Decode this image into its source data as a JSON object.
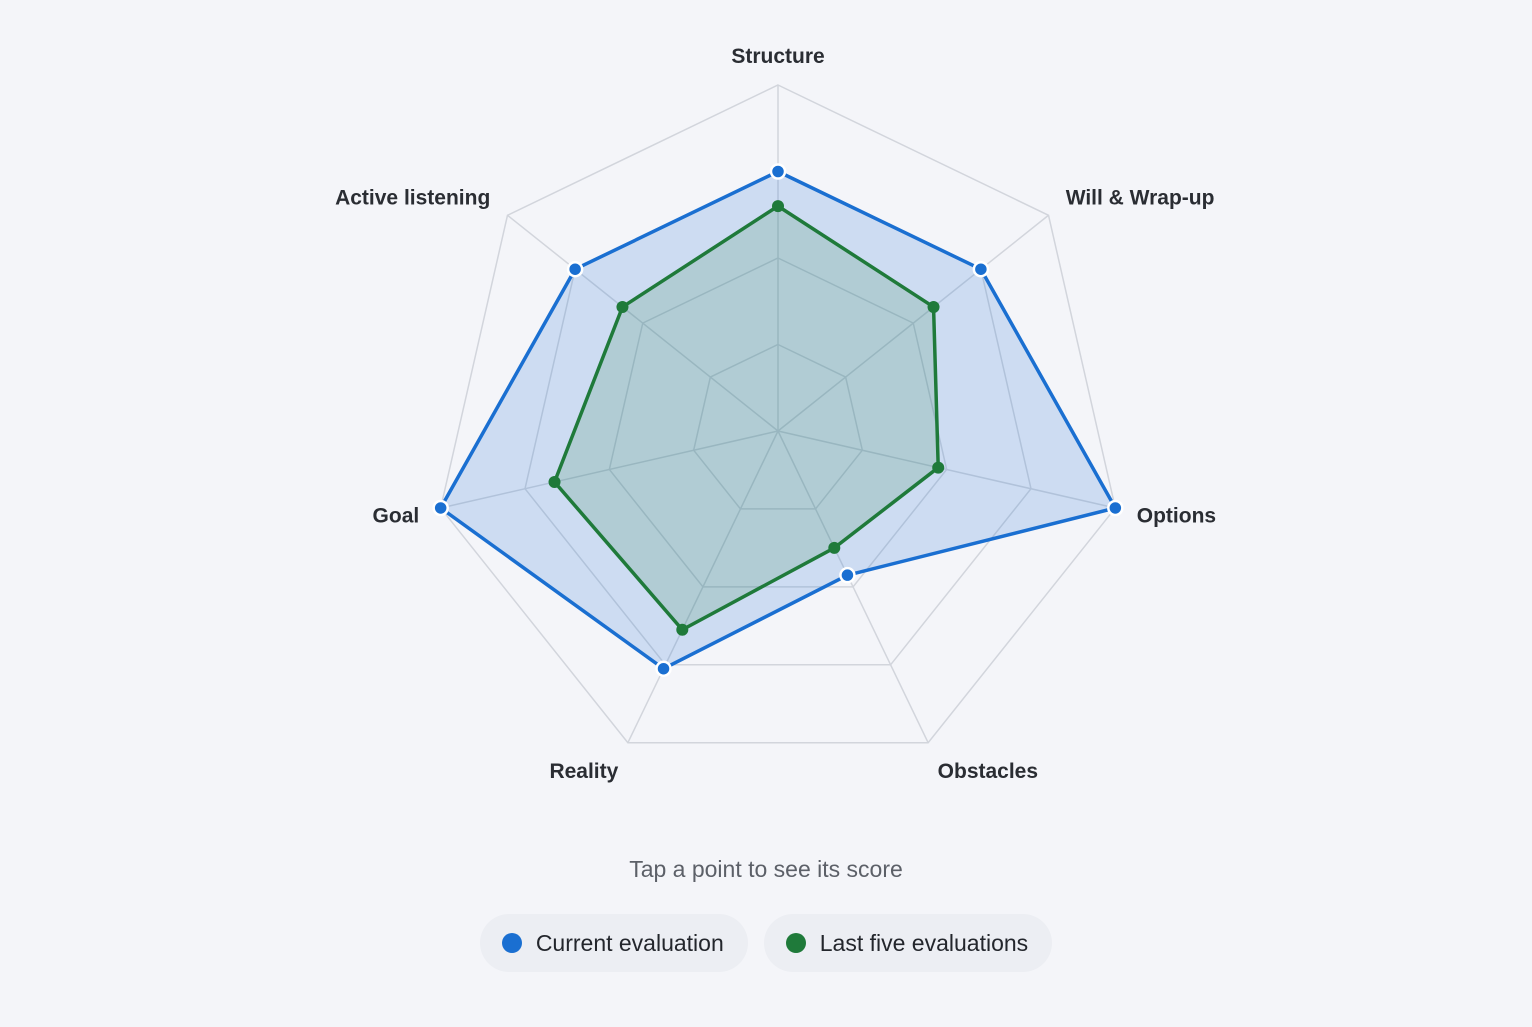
{
  "chart_data": {
    "type": "radar",
    "axes": [
      "Structure",
      "Will & Wrap-up",
      "Options",
      "Obstacles",
      "Reality",
      "Goal",
      "Active listening"
    ],
    "rmax": 4,
    "grid_levels": 4,
    "series": [
      {
        "name": "Current evaluation",
        "color": "#1a6fd1",
        "fill": "rgba(26,111,209,0.18)",
        "values": [
          3.0,
          3.0,
          4.0,
          1.85,
          3.05,
          4.0,
          3.0
        ]
      },
      {
        "name": "Last five evaluations",
        "color": "#1f7a3a",
        "fill": "rgba(31,122,58,0.16)",
        "values": [
          2.6,
          2.3,
          1.9,
          1.5,
          2.55,
          2.65,
          2.3
        ]
      }
    ]
  },
  "hint": "Tap a point to see its score",
  "legend": [
    {
      "label": "Current evaluation",
      "color": "#1a6fd1"
    },
    {
      "label": "Last five evaluations",
      "color": "#1f7a3a"
    }
  ]
}
